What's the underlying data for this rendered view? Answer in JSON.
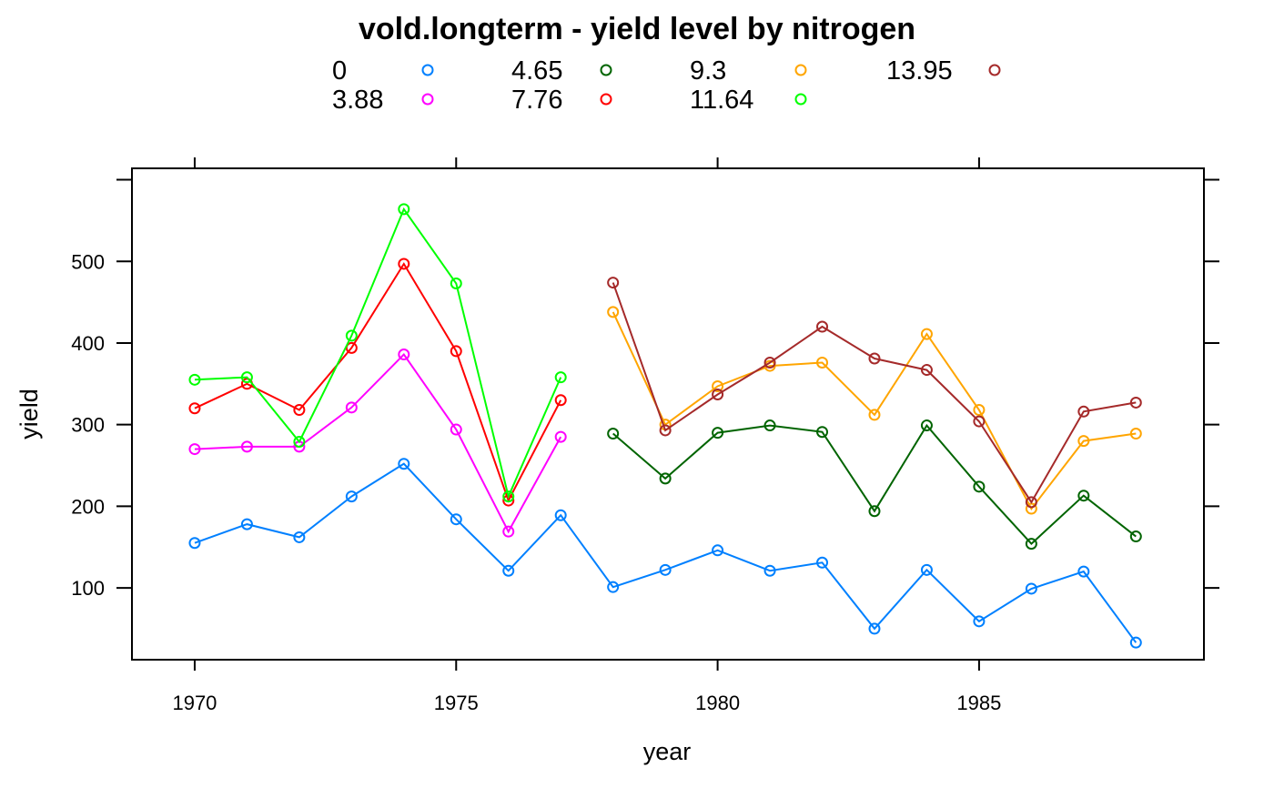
{
  "chart_data": {
    "type": "line",
    "title": "vold.longterm - yield level by nitrogen",
    "xlabel": "year",
    "ylabel": "yield",
    "xlim": [
      1968.8,
      1989.3
    ],
    "ylim": [
      12,
      614
    ],
    "x_ticks": [
      1970,
      1975,
      1980,
      1985
    ],
    "x_tick_labels": [
      "1970",
      "1975",
      "1980",
      "1985"
    ],
    "y_ticks": [
      0,
      100,
      200,
      300,
      400,
      500,
      600
    ],
    "y_tick_labels": [
      "",
      "100",
      "200",
      "300",
      "400",
      "500",
      ""
    ],
    "grid": false,
    "legend_position": "top",
    "series": [
      {
        "name": "0",
        "color": "#0080FF",
        "x": [
          1970,
          1971,
          1972,
          1973,
          1974,
          1975,
          1976,
          1977,
          1978,
          1979,
          1980,
          1981,
          1982,
          1983,
          1984,
          1985,
          1986,
          1987,
          1988
        ],
        "values": [
          155,
          178,
          162,
          212,
          252,
          184,
          121,
          189,
          101,
          122,
          146,
          121,
          131,
          50,
          122,
          59,
          99,
          120,
          33
        ]
      },
      {
        "name": "3.88",
        "color": "#FF00FF",
        "x": [
          1970,
          1971,
          1972,
          1973,
          1974,
          1975,
          1976,
          1977
        ],
        "values": [
          270,
          273,
          273,
          321,
          386,
          294,
          169,
          285
        ]
      },
      {
        "name": "4.65",
        "color": "#006400",
        "x": [
          1978,
          1979,
          1980,
          1981,
          1982,
          1983,
          1984,
          1985,
          1986,
          1987,
          1988
        ],
        "values": [
          289,
          234,
          290,
          299,
          291,
          194,
          299,
          224,
          154,
          213,
          163
        ]
      },
      {
        "name": "7.76",
        "color": "#FF0000",
        "x": [
          1970,
          1971,
          1972,
          1973,
          1974,
          1975,
          1976,
          1977
        ],
        "values": [
          320,
          350,
          318,
          394,
          497,
          390,
          207,
          330
        ]
      },
      {
        "name": "9.3",
        "color": "#FFA500",
        "x": [
          1978,
          1979,
          1980,
          1981,
          1982,
          1983,
          1984,
          1985,
          1986,
          1987,
          1988
        ],
        "values": [
          438,
          300,
          347,
          372,
          376,
          312,
          411,
          318,
          197,
          280,
          289
        ]
      },
      {
        "name": "11.64",
        "color": "#00FF00",
        "x": [
          1970,
          1971,
          1972,
          1973,
          1974,
          1975,
          1976,
          1977
        ],
        "values": [
          355,
          358,
          279,
          409,
          564,
          473,
          212,
          358
        ]
      },
      {
        "name": "13.95",
        "color": "#A52A2A",
        "x": [
          1978,
          1979,
          1980,
          1981,
          1982,
          1983,
          1984,
          1985,
          1986,
          1987,
          1988
        ],
        "values": [
          474,
          293,
          337,
          376,
          420,
          381,
          367,
          304,
          205,
          316,
          327
        ]
      }
    ]
  }
}
